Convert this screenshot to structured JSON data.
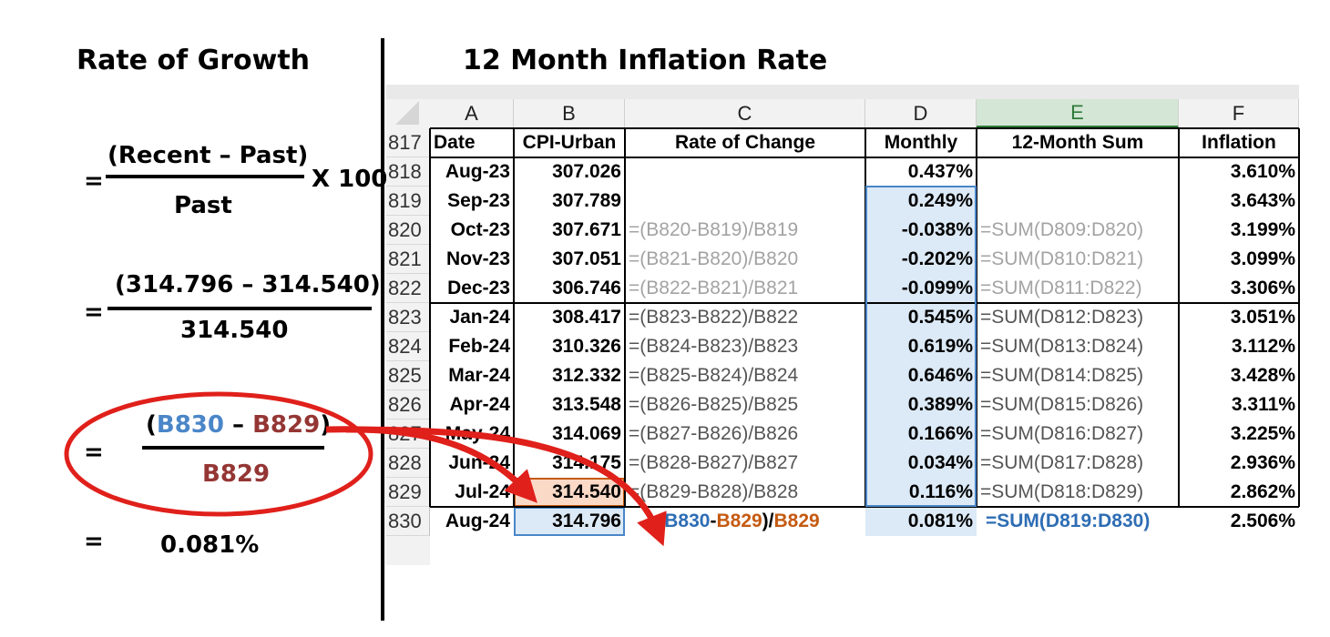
{
  "left": {
    "title": "Rate of Growth",
    "formula_text": {
      "equals": "=",
      "numerator": "(Recent – Past)",
      "times": "X 100",
      "denominator": "Past"
    },
    "formula_values": {
      "equals": "=",
      "numerator": "(314.796 – 314.540)",
      "denominator": "314.540"
    },
    "formula_cells": {
      "equals": "=",
      "open": "(",
      "ref_recent": "B830",
      "dash": " – ",
      "ref_past": "B829",
      "close": ")",
      "denominator": "B829"
    },
    "result": {
      "equals": "=",
      "value": "0.081%"
    }
  },
  "right": {
    "title": "12 Month Inflation Rate"
  },
  "sheet": {
    "columns": [
      "A",
      "B",
      "C",
      "D",
      "E",
      "F"
    ],
    "header_row": {
      "row": "817",
      "cells": [
        "Date",
        "CPI-Urban",
        "Rate of Change",
        "Monthly",
        "12-Month Sum",
        "Inflation"
      ]
    },
    "rows": [
      {
        "row": "818",
        "date": "Aug-23",
        "cpi": "307.026",
        "rate": "",
        "monthly": "0.437%",
        "sum": "",
        "inflation": "3.610%"
      },
      {
        "row": "819",
        "date": "Sep-23",
        "cpi": "307.789",
        "rate": "",
        "monthly": "0.249%",
        "sum": "",
        "inflation": "3.643%"
      },
      {
        "row": "820",
        "date": "Oct-23",
        "cpi": "307.671",
        "rate": "=(B820-B819)/B819",
        "monthly": "-0.038%",
        "sum": "=SUM(D809:D820)",
        "inflation": "3.199%"
      },
      {
        "row": "821",
        "date": "Nov-23",
        "cpi": "307.051",
        "rate": "=(B821-B820)/B820",
        "monthly": "-0.202%",
        "sum": "=SUM(D810:D821)",
        "inflation": "3.099%"
      },
      {
        "row": "822",
        "date": "Dec-23",
        "cpi": "306.746",
        "rate": "=(B822-B821)/B821",
        "monthly": "-0.099%",
        "sum": "=SUM(D811:D822)",
        "inflation": "3.306%"
      },
      {
        "row": "823",
        "date": "Jan-24",
        "cpi": "308.417",
        "rate": "=(B823-B822)/B822",
        "monthly": "0.545%",
        "sum": "=SUM(D812:D823)",
        "inflation": "3.051%"
      },
      {
        "row": "824",
        "date": "Feb-24",
        "cpi": "310.326",
        "rate": "=(B824-B823)/B823",
        "monthly": "0.619%",
        "sum": "=SUM(D813:D824)",
        "inflation": "3.112%"
      },
      {
        "row": "825",
        "date": "Mar-24",
        "cpi": "312.332",
        "rate": "=(B825-B824)/B824",
        "monthly": "0.646%",
        "sum": "=SUM(D814:D825)",
        "inflation": "3.428%"
      },
      {
        "row": "826",
        "date": "Apr-24",
        "cpi": "313.548",
        "rate": "=(B826-B825)/B825",
        "monthly": "0.389%",
        "sum": "=SUM(D815:D826)",
        "inflation": "3.311%"
      },
      {
        "row": "827",
        "date": "May-24",
        "cpi": "314.069",
        "rate": "=(B827-B826)/B826",
        "monthly": "0.166%",
        "sum": "=SUM(D816:D827)",
        "inflation": "3.225%"
      },
      {
        "row": "828",
        "date": "Jun-24",
        "cpi": "314.175",
        "rate": "=(B828-B827)/B827",
        "monthly": "0.034%",
        "sum": "=SUM(D817:D828)",
        "inflation": "2.936%"
      },
      {
        "row": "829",
        "date": "Jul-24",
        "cpi": "314.540",
        "rate": "=(B829-B828)/B828",
        "monthly": "0.116%",
        "sum": "=SUM(D818:D829)",
        "inflation": "2.862%"
      }
    ],
    "last_row": {
      "row": "830",
      "date": "Aug-24",
      "cpi": "314.796",
      "rate_parts": [
        "=(",
        "B830",
        "-",
        "B829",
        ")/",
        "B829"
      ],
      "monthly": "0.081%",
      "sum": "=SUM(D819:D830)",
      "inflation": "2.506%"
    }
  },
  "colors": {
    "accent_blue": "#4a86c8",
    "accent_brown": "#943634",
    "formula_blue": "#2e6db4",
    "formula_orange": "#c55a11",
    "highlight_red": "#e0201b",
    "selected_blue_fill": "#dce9f6",
    "selected_orange_fill": "#fbd9c7"
  }
}
